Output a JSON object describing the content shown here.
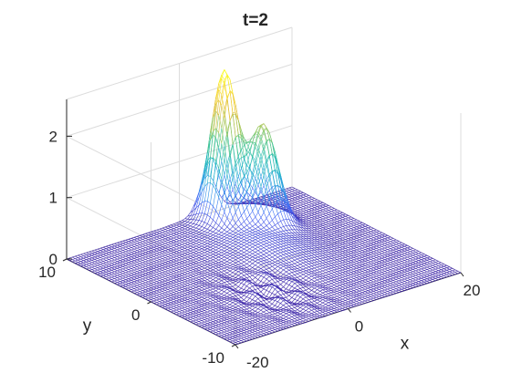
{
  "chart_data": {
    "type": "surface",
    "title": "t=2",
    "xlabel": "x",
    "ylabel": "y",
    "zlabel": "",
    "x_range": [
      -20,
      20
    ],
    "y_range": [
      -10,
      10
    ],
    "zlim": [
      0,
      2.6
    ],
    "x_ticks": [
      -20,
      0,
      20
    ],
    "y_ticks": [
      -10,
      0,
      10
    ],
    "z_ticks": [
      0,
      1,
      2
    ],
    "x_tick_labels": [
      "-20",
      "0",
      "20"
    ],
    "y_tick_labels": [
      "-10",
      "0",
      "10"
    ],
    "z_tick_labels": [
      "0",
      "1",
      "2"
    ],
    "grid": true,
    "colormap": "parula",
    "colormap_stops": [
      "#3e26a8",
      "#4765f7",
      "#2c97e8",
      "#1cb4c4",
      "#37c39e",
      "#8bc963",
      "#dcbb35",
      "#f8d72e",
      "#f9fb15"
    ],
    "peaks": [
      {
        "x": 5,
        "y": 8,
        "height": 2.4
      },
      {
        "x": 9,
        "y": 6,
        "height": 1.55
      }
    ],
    "ripples": {
      "region_x": [
        -12,
        2
      ],
      "region_y": [
        -10,
        2
      ],
      "amplitude": 0.08
    }
  }
}
